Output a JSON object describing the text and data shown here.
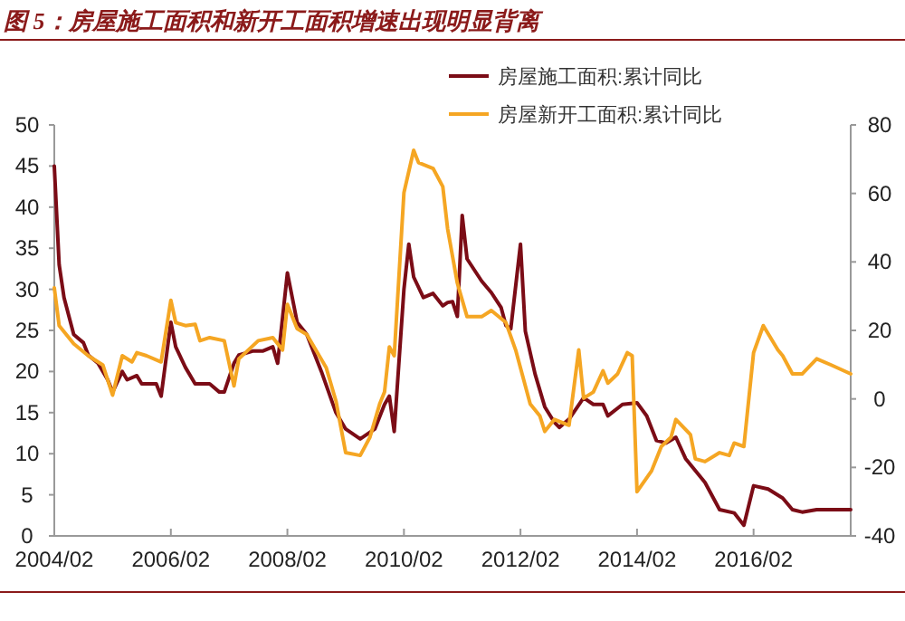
{
  "chart_data": {
    "type": "line",
    "title": "图 5：房屋施工面积和新开工面积增速出现明显背离",
    "legend": "top right",
    "xlim": [
      "2004-02",
      "2017-10"
    ],
    "xticks": [
      {
        "value": "2004-02",
        "label": "2004/02"
      },
      {
        "value": "2006-02",
        "label": "2006/02"
      },
      {
        "value": "2008-02",
        "label": "2008/02"
      },
      {
        "value": "2010-02",
        "label": "2010/02"
      },
      {
        "value": "2012-02",
        "label": "2012/02"
      },
      {
        "value": "2014-02",
        "label": "2014/02"
      },
      {
        "value": "2016-02",
        "label": "2016/02"
      }
    ],
    "ylim": [
      0,
      50
    ],
    "yticks": [
      0,
      5,
      10,
      15,
      20,
      25,
      30,
      35,
      40,
      45,
      50
    ],
    "y2lim": [
      -40,
      80
    ],
    "y2ticks": [
      -40,
      -20,
      0,
      20,
      40,
      60,
      80
    ],
    "series": [
      {
        "name": "房屋施工面积:累计同比",
        "color": "#7b0c16",
        "x": [
          "2004-02",
          "2004-03",
          "2004-04",
          "2004-06",
          "2004-08",
          "2004-09",
          "2004-11",
          "2005-01",
          "2005-02",
          "2005-04",
          "2005-05",
          "2005-07",
          "2005-08",
          "2005-11",
          "2005-12",
          "2006-02",
          "2006-03",
          "2006-05",
          "2006-07",
          "2006-10",
          "2006-12",
          "2007-01",
          "2007-03",
          "2007-04",
          "2007-07",
          "2007-09",
          "2007-11",
          "2007-12",
          "2008-02",
          "2008-04",
          "2008-06",
          "2008-09",
          "2008-12",
          "2009-02",
          "2009-05",
          "2009-08",
          "2009-10",
          "2009-11",
          "2009-12",
          "2010-02",
          "2010-03",
          "2010-04",
          "2010-06",
          "2010-08",
          "2010-10",
          "2010-11",
          "2010-12",
          "2011-01",
          "2011-02",
          "2011-03",
          "2011-06",
          "2011-08",
          "2011-10",
          "2011-11",
          "2011-12",
          "2012-02",
          "2012-03",
          "2012-05",
          "2012-07",
          "2012-09",
          "2012-10",
          "2012-12",
          "2013-03",
          "2013-05",
          "2013-07",
          "2013-08",
          "2013-11",
          "2014-02",
          "2014-04",
          "2014-06",
          "2014-08",
          "2014-10",
          "2014-12",
          "2015-04",
          "2015-07",
          "2015-10",
          "2015-12",
          "2016-02",
          "2016-05",
          "2016-08",
          "2016-10",
          "2016-12",
          "2017-03",
          "2017-10"
        ],
        "values": [
          45,
          33,
          29,
          24.5,
          23.5,
          22,
          21,
          19,
          17.5,
          20,
          19,
          19.5,
          18.5,
          18.5,
          17,
          26,
          23,
          20.5,
          18.5,
          18.5,
          17.5,
          17.5,
          21,
          22,
          22.5,
          22.5,
          23,
          21,
          32,
          26,
          24.5,
          20,
          15,
          13,
          11.8,
          13,
          16,
          17,
          12.7,
          30,
          35.5,
          31.5,
          29,
          29.5,
          28,
          28.4,
          28.5,
          26.7,
          39,
          33.7,
          31,
          29.6,
          27.8,
          25.6,
          25.2,
          35.5,
          24.9,
          19.7,
          15.7,
          13.8,
          13.2,
          14.2,
          16.8,
          16,
          16,
          14.6,
          16,
          16.2,
          14.6,
          11.6,
          11.3,
          12,
          9.4,
          6.5,
          3.2,
          2.8,
          1.3,
          6.1,
          5.7,
          4.6,
          3.2,
          2.9,
          3.2,
          3.2
        ]
      },
      {
        "name": "房屋新开工面积:累计同比",
        "color": "#f5a623",
        "axis": "y2",
        "x": [
          "2004-02",
          "2004-03",
          "2004-06",
          "2004-09",
          "2004-12",
          "2005-02",
          "2005-04",
          "2005-06",
          "2005-07",
          "2005-09",
          "2005-12",
          "2006-02",
          "2006-03",
          "2006-05",
          "2006-07",
          "2006-08",
          "2006-10",
          "2007-01",
          "2007-03",
          "2007-04",
          "2007-08",
          "2007-11",
          "2008-01",
          "2008-02",
          "2008-04",
          "2008-06",
          "2008-10",
          "2008-12",
          "2009-02",
          "2009-05",
          "2009-07",
          "2009-09",
          "2009-10",
          "2009-11",
          "2009-12",
          "2010-02",
          "2010-04",
          "2010-05",
          "2010-08",
          "2010-10",
          "2010-11",
          "2011-01",
          "2011-03",
          "2011-06",
          "2011-08",
          "2011-11",
          "2012-01",
          "2012-04",
          "2012-06",
          "2012-07",
          "2012-09",
          "2012-12",
          "2013-02",
          "2013-03",
          "2013-05",
          "2013-07",
          "2013-08",
          "2013-10",
          "2013-12",
          "2014-01",
          "2014-02",
          "2014-05",
          "2014-07",
          "2014-09",
          "2014-10",
          "2015-01",
          "2015-02",
          "2015-04",
          "2015-07",
          "2015-09",
          "2015-10",
          "2015-12",
          "2016-02",
          "2016-04",
          "2016-07",
          "2016-08",
          "2016-10",
          "2016-12",
          "2017-03",
          "2017-06",
          "2017-10"
        ],
        "values": [
          32.4,
          21.4,
          16.1,
          12.6,
          9.9,
          1.1,
          12.6,
          10.8,
          13.5,
          12.6,
          10.8,
          28.8,
          22.3,
          21.4,
          21.8,
          17,
          17.9,
          17,
          3.8,
          11.7,
          17,
          17.9,
          14.3,
          27.6,
          20.5,
          18.8,
          9.1,
          -0.6,
          -15.7,
          -16.5,
          -11.2,
          -1.5,
          2,
          15.2,
          12.6,
          60.2,
          72.6,
          69,
          67.3,
          62,
          49.6,
          33.8,
          24,
          24,
          25.8,
          22.3,
          14.3,
          -1.5,
          -5,
          -9.5,
          -6,
          -7.7,
          14.3,
          0.2,
          2,
          8.2,
          4.6,
          7.3,
          13.5,
          12.6,
          -27.1,
          -21,
          -13.9,
          -11.2,
          -6,
          -10.4,
          -17.5,
          -18.3,
          -15.7,
          -16.5,
          -12.9,
          -13.9,
          13.5,
          21.4,
          14.3,
          12.6,
          7.3,
          7.3,
          11.7,
          9.9,
          7.3
        ]
      }
    ]
  }
}
